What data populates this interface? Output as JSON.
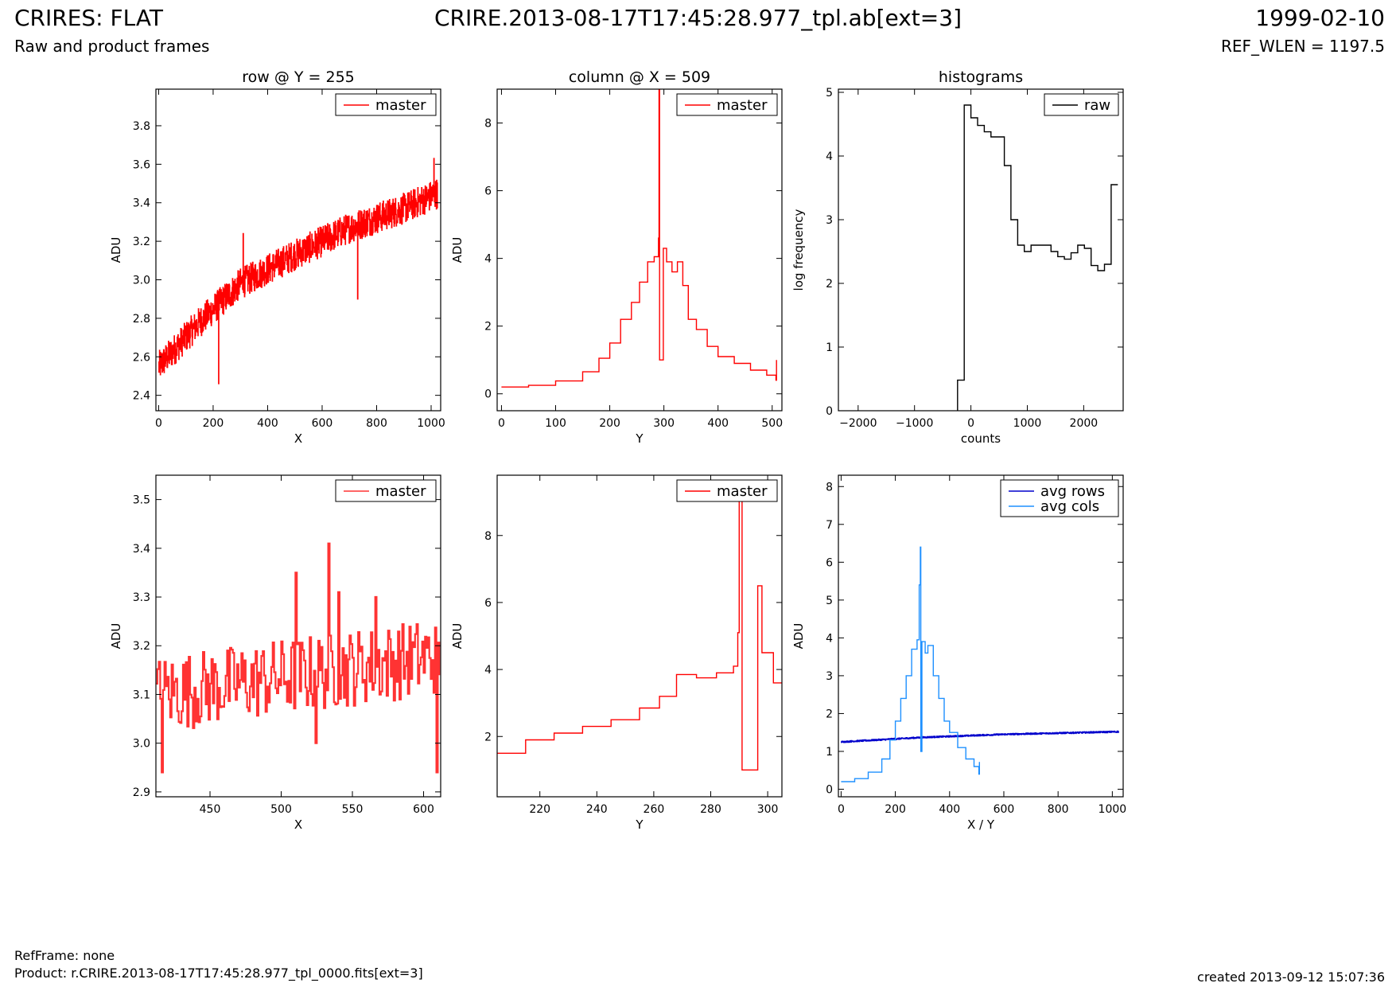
{
  "header": {
    "title": "CRIRES: FLAT",
    "subtitle": "Raw and product frames",
    "file": "CRIRE.2013-08-17T17:45:28.977_tpl.ab[ext=3]",
    "date": "1999-02-10",
    "ref_wlen": "REF_WLEN = 1197.5"
  },
  "footer": {
    "refframe": "RefFrame: none",
    "product": "Product: r.CRIRE.2013-08-17T17:45:28.977_tpl_0000.fits[ext=3]",
    "created": "created 2013-09-12 15:07:36"
  },
  "colors": {
    "red": "#ff0000",
    "red_light": "#ff3333",
    "blue": "#0000cc",
    "light_blue": "#1e90ff",
    "black": "#000000"
  },
  "chart_data": [
    {
      "type": "line",
      "title": "row @ Y = 255",
      "xlabel": "X",
      "ylabel": "ADU",
      "xlim": [
        -10,
        1035
      ],
      "ylim": [
        2.32,
        3.99
      ],
      "xticks": [
        0,
        200,
        400,
        600,
        800,
        1000
      ],
      "yticks": [
        2.4,
        2.6,
        2.8,
        3.0,
        3.2,
        3.4,
        3.6,
        3.8
      ],
      "ytick_labels": [
        "2.4",
        "2.6",
        "2.8",
        "3.0",
        "3.2",
        "3.4",
        "3.6",
        "3.8"
      ],
      "legend": "top-right",
      "series": [
        {
          "name": "master",
          "color": "#ff0000",
          "x_range": [
            0,
            1023
          ],
          "trend": [
            [
              0,
              2.55
            ],
            [
              150,
              2.78
            ],
            [
              300,
              2.98
            ],
            [
              500,
              3.13
            ],
            [
              700,
              3.27
            ],
            [
              900,
              3.37
            ],
            [
              1023,
              3.45
            ]
          ],
          "noise": 0.08,
          "spikes": [
            [
              220,
              2.46
            ],
            [
              310,
              3.24
            ],
            [
              440,
              3.05
            ],
            [
              730,
              2.9
            ],
            [
              1010,
              3.63
            ]
          ]
        }
      ]
    },
    {
      "type": "line",
      "title": "column @ X = 509",
      "xlabel": "Y",
      "ylabel": "ADU",
      "xlim": [
        -8,
        518
      ],
      "ylim": [
        -0.5,
        9.0
      ],
      "xticks": [
        0,
        100,
        200,
        300,
        400,
        500
      ],
      "yticks": [
        0,
        2,
        4,
        6,
        8
      ],
      "ytick_labels": [
        "0",
        "2",
        "4",
        "6",
        "8"
      ],
      "legend": "top-right",
      "series": [
        {
          "name": "master",
          "color": "#ff0000",
          "points": [
            [
              0,
              0.2
            ],
            [
              50,
              0.25
            ],
            [
              100,
              0.38
            ],
            [
              150,
              0.65
            ],
            [
              180,
              1.05
            ],
            [
              200,
              1.5
            ],
            [
              220,
              2.2
            ],
            [
              240,
              2.7
            ],
            [
              255,
              3.3
            ],
            [
              270,
              3.9
            ],
            [
              282,
              4.05
            ],
            [
              290,
              4.6
            ],
            [
              291,
              9.0
            ],
            [
              292,
              1.0
            ],
            [
              298,
              1.0
            ],
            [
              299,
              4.3
            ],
            [
              305,
              3.9
            ],
            [
              315,
              3.6
            ],
            [
              325,
              3.9
            ],
            [
              335,
              3.2
            ],
            [
              345,
              2.2
            ],
            [
              360,
              1.9
            ],
            [
              380,
              1.4
            ],
            [
              400,
              1.1
            ],
            [
              430,
              0.9
            ],
            [
              460,
              0.7
            ],
            [
              490,
              0.55
            ],
            [
              507,
              0.4
            ],
            [
              508,
              1.0
            ]
          ]
        }
      ]
    },
    {
      "type": "line",
      "title": "histograms",
      "xlabel": "counts",
      "ylabel": "log frequency",
      "xlim": [
        -2350,
        2700
      ],
      "ylim": [
        0,
        5.05
      ],
      "xticks": [
        -2000,
        -1000,
        0,
        1000,
        2000
      ],
      "xtick_labels": [
        "−2000",
        "−1000",
        "0",
        "1000",
        "2000"
      ],
      "yticks": [
        0,
        1,
        2,
        3,
        4,
        5
      ],
      "ytick_labels": [
        "0",
        "1",
        "2",
        "3",
        "4",
        "5"
      ],
      "legend": "top-right",
      "series": [
        {
          "name": "raw",
          "color": "#000000",
          "bins": [
            -237,
            -118,
            0,
            118,
            237,
            355,
            474,
            592,
            710,
            829,
            947,
            1066,
            1184,
            1303,
            1421,
            1540,
            1658,
            1776,
            1895,
            2013,
            2132,
            2250,
            2369,
            2487,
            2606
          ],
          "counts": [
            0.48,
            4.8,
            4.6,
            4.48,
            4.38,
            4.3,
            4.3,
            3.85,
            3.0,
            2.6,
            2.5,
            2.6,
            2.6,
            2.6,
            2.5,
            2.42,
            2.38,
            2.48,
            2.6,
            2.55,
            2.28,
            2.2,
            2.3,
            3.55
          ]
        }
      ]
    },
    {
      "type": "line",
      "title": "",
      "xlabel": "X",
      "ylabel": "ADU",
      "xlim": [
        412,
        612
      ],
      "ylim": [
        2.89,
        3.55
      ],
      "xticks": [
        450,
        500,
        550,
        600
      ],
      "yticks": [
        2.9,
        3.0,
        3.1,
        3.2,
        3.3,
        3.4,
        3.5
      ],
      "ytick_labels": [
        "2.9",
        "3.0",
        "3.1",
        "3.2",
        "3.3",
        "3.4",
        "3.5"
      ],
      "legend": "top-right",
      "series": [
        {
          "name": "master",
          "color": "#ff3333",
          "x_range": [
            412,
            611
          ],
          "trend": [
            [
              412,
              3.1
            ],
            [
              612,
              3.18
            ]
          ],
          "noise": 0.08,
          "spikes": [
            [
              416,
              2.94
            ],
            [
              510,
              3.35
            ],
            [
              533,
              3.41
            ],
            [
              540,
              3.31
            ],
            [
              566,
              3.3
            ],
            [
              609,
              2.94
            ],
            [
              524,
              3.0
            ]
          ]
        }
      ]
    },
    {
      "type": "line",
      "title": "",
      "xlabel": "Y",
      "ylabel": "ADU",
      "xlim": [
        205,
        305
      ],
      "ylim": [
        0.2,
        9.8
      ],
      "xticks": [
        220,
        240,
        260,
        280,
        300
      ],
      "yticks": [
        2,
        4,
        6,
        8
      ],
      "ytick_labels": [
        "2",
        "4",
        "6",
        "8"
      ],
      "legend": "top-right",
      "series": [
        {
          "name": "master",
          "color": "#ff0000",
          "points": [
            [
              205,
              1.5
            ],
            [
              215,
              1.9
            ],
            [
              225,
              2.1
            ],
            [
              235,
              2.3
            ],
            [
              245,
              2.5
            ],
            [
              255,
              2.85
            ],
            [
              262,
              3.2
            ],
            [
              268,
              3.85
            ],
            [
              275,
              3.75
            ],
            [
              282,
              3.9
            ],
            [
              288,
              4.1
            ],
            [
              289.5,
              5.1
            ],
            [
              290,
              9.1
            ],
            [
              291,
              1.0
            ],
            [
              296,
              1.0
            ],
            [
              296.5,
              6.5
            ],
            [
              298,
              4.5
            ],
            [
              302,
              3.6
            ],
            [
              305,
              3.6
            ]
          ]
        }
      ]
    },
    {
      "type": "line",
      "title": "",
      "xlabel": "X / Y",
      "ylabel": "ADU",
      "xlim": [
        -10,
        1040
      ],
      "ylim": [
        -0.2,
        8.3
      ],
      "xticks": [
        0,
        200,
        400,
        600,
        800,
        1000
      ],
      "yticks": [
        0,
        1,
        2,
        3,
        4,
        5,
        6,
        7,
        8
      ],
      "ytick_labels": [
        "0",
        "1",
        "2",
        "3",
        "4",
        "5",
        "6",
        "7",
        "8"
      ],
      "legend": "top-right",
      "series": [
        {
          "name": "avg rows",
          "color": "#0000cc",
          "x_range": [
            0,
            1023
          ],
          "trend": [
            [
              0,
              1.25
            ],
            [
              300,
              1.37
            ],
            [
              600,
              1.45
            ],
            [
              1023,
              1.52
            ]
          ],
          "noise": 0.02
        },
        {
          "name": "avg cols",
          "color": "#1e90ff",
          "points": [
            [
              0,
              0.2
            ],
            [
              50,
              0.28
            ],
            [
              100,
              0.45
            ],
            [
              150,
              0.8
            ],
            [
              180,
              1.3
            ],
            [
              200,
              1.8
            ],
            [
              220,
              2.4
            ],
            [
              240,
              3.0
            ],
            [
              260,
              3.7
            ],
            [
              280,
              3.95
            ],
            [
              288,
              5.4
            ],
            [
              292,
              6.4
            ],
            [
              294,
              1.0
            ],
            [
              298,
              3.9
            ],
            [
              310,
              3.6
            ],
            [
              320,
              3.8
            ],
            [
              340,
              3.0
            ],
            [
              360,
              2.4
            ],
            [
              380,
              1.8
            ],
            [
              400,
              1.5
            ],
            [
              430,
              1.1
            ],
            [
              460,
              0.8
            ],
            [
              490,
              0.6
            ],
            [
              508,
              0.4
            ],
            [
              510,
              0.72
            ]
          ]
        }
      ]
    }
  ]
}
